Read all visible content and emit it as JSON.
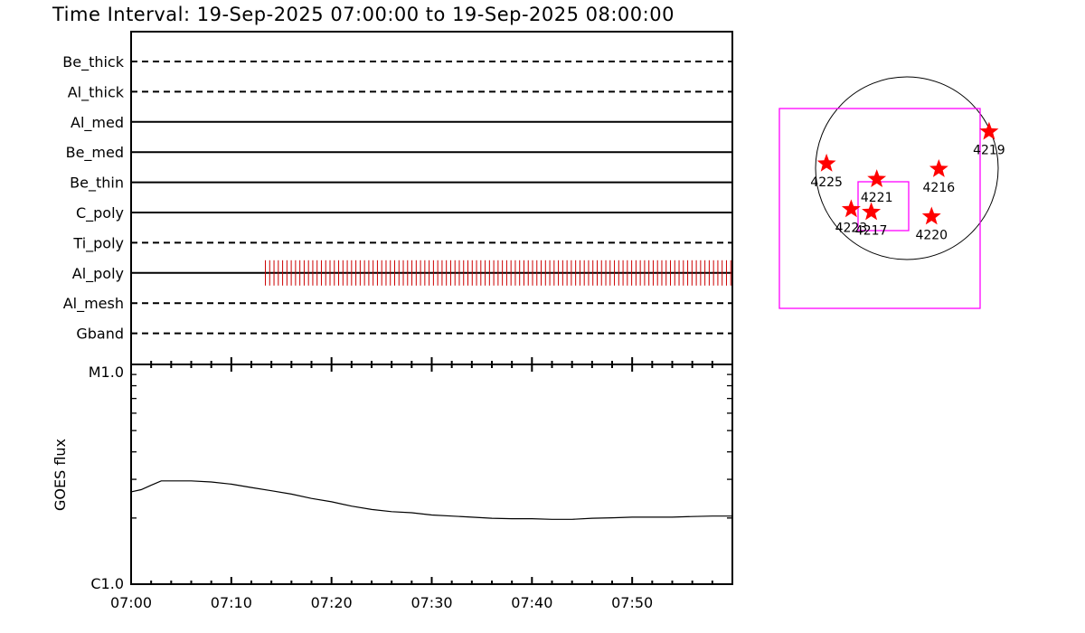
{
  "title": "Time Interval: 19-Sep-2025 07:00:00 to 19-Sep-2025 08:00:00",
  "chart_data": [
    {
      "type": "timeline",
      "x_range_minutes": [
        0,
        60
      ],
      "x_ticks": [
        {
          "m": 0,
          "label": "07:00"
        },
        {
          "m": 10,
          "label": "07:10"
        },
        {
          "m": 20,
          "label": "07:20"
        },
        {
          "m": 30,
          "label": "07:30"
        },
        {
          "m": 40,
          "label": "07:40"
        },
        {
          "m": 50,
          "label": "07:50"
        }
      ],
      "rows": [
        {
          "name": "Be_thick",
          "style": "dashed"
        },
        {
          "name": "Al_thick",
          "style": "dashed"
        },
        {
          "name": "Al_med",
          "style": "solid"
        },
        {
          "name": "Be_med",
          "style": "solid"
        },
        {
          "name": "Be_thin",
          "style": "solid"
        },
        {
          "name": "C_poly",
          "style": "solid"
        },
        {
          "name": "Ti_poly",
          "style": "dashed"
        },
        {
          "name": "Al_poly",
          "style": "solid",
          "exposures": {
            "start_min": 13.4,
            "end_min": 59.9,
            "step_min": 0.43,
            "color": "#cc0000"
          }
        },
        {
          "name": "Al_mesh",
          "style": "dashed"
        },
        {
          "name": "Gband",
          "style": "dashed"
        }
      ]
    },
    {
      "type": "line",
      "ylabel": "GOES flux",
      "yscale": "log",
      "y_tick_labels": {
        "top": "M1.0",
        "bottom": "C1.0"
      },
      "ylim_class": [
        "C1.0",
        "M1.0"
      ],
      "x_range_minutes": [
        0,
        60
      ],
      "series": [
        {
          "x": [
            0,
            1,
            2,
            3,
            4,
            6,
            8,
            10,
            12,
            14,
            16,
            18,
            20,
            22,
            24,
            26,
            28,
            30,
            32,
            34,
            36,
            38,
            40,
            42,
            44,
            46,
            48,
            50,
            52,
            54,
            56,
            58,
            60
          ],
          "y_rel": [
            0.42,
            0.43,
            0.45,
            0.47,
            0.47,
            0.47,
            0.465,
            0.455,
            0.44,
            0.425,
            0.41,
            0.39,
            0.375,
            0.355,
            0.34,
            0.33,
            0.325,
            0.315,
            0.31,
            0.305,
            0.3,
            0.298,
            0.298,
            0.295,
            0.295,
            0.3,
            0.302,
            0.305,
            0.305,
            0.305,
            0.308,
            0.31,
            0.31
          ]
        }
      ]
    },
    {
      "type": "scatter",
      "subtype": "solar_disk_map",
      "points": [
        {
          "label": "4219",
          "x": 0.9,
          "y": 0.4
        },
        {
          "label": "4225",
          "x": -0.88,
          "y": 0.05
        },
        {
          "label": "4221",
          "x": -0.33,
          "y": -0.12
        },
        {
          "label": "4216",
          "x": 0.35,
          "y": -0.01
        },
        {
          "label": "4223",
          "x": -0.61,
          "y": -0.45
        },
        {
          "label": "4217",
          "x": -0.39,
          "y": -0.48
        },
        {
          "label": "4220",
          "x": 0.27,
          "y": -0.53
        }
      ],
      "colors": {
        "marker": "#ff0000",
        "fov": "#ff00ff",
        "limb": "#000000"
      }
    }
  ]
}
